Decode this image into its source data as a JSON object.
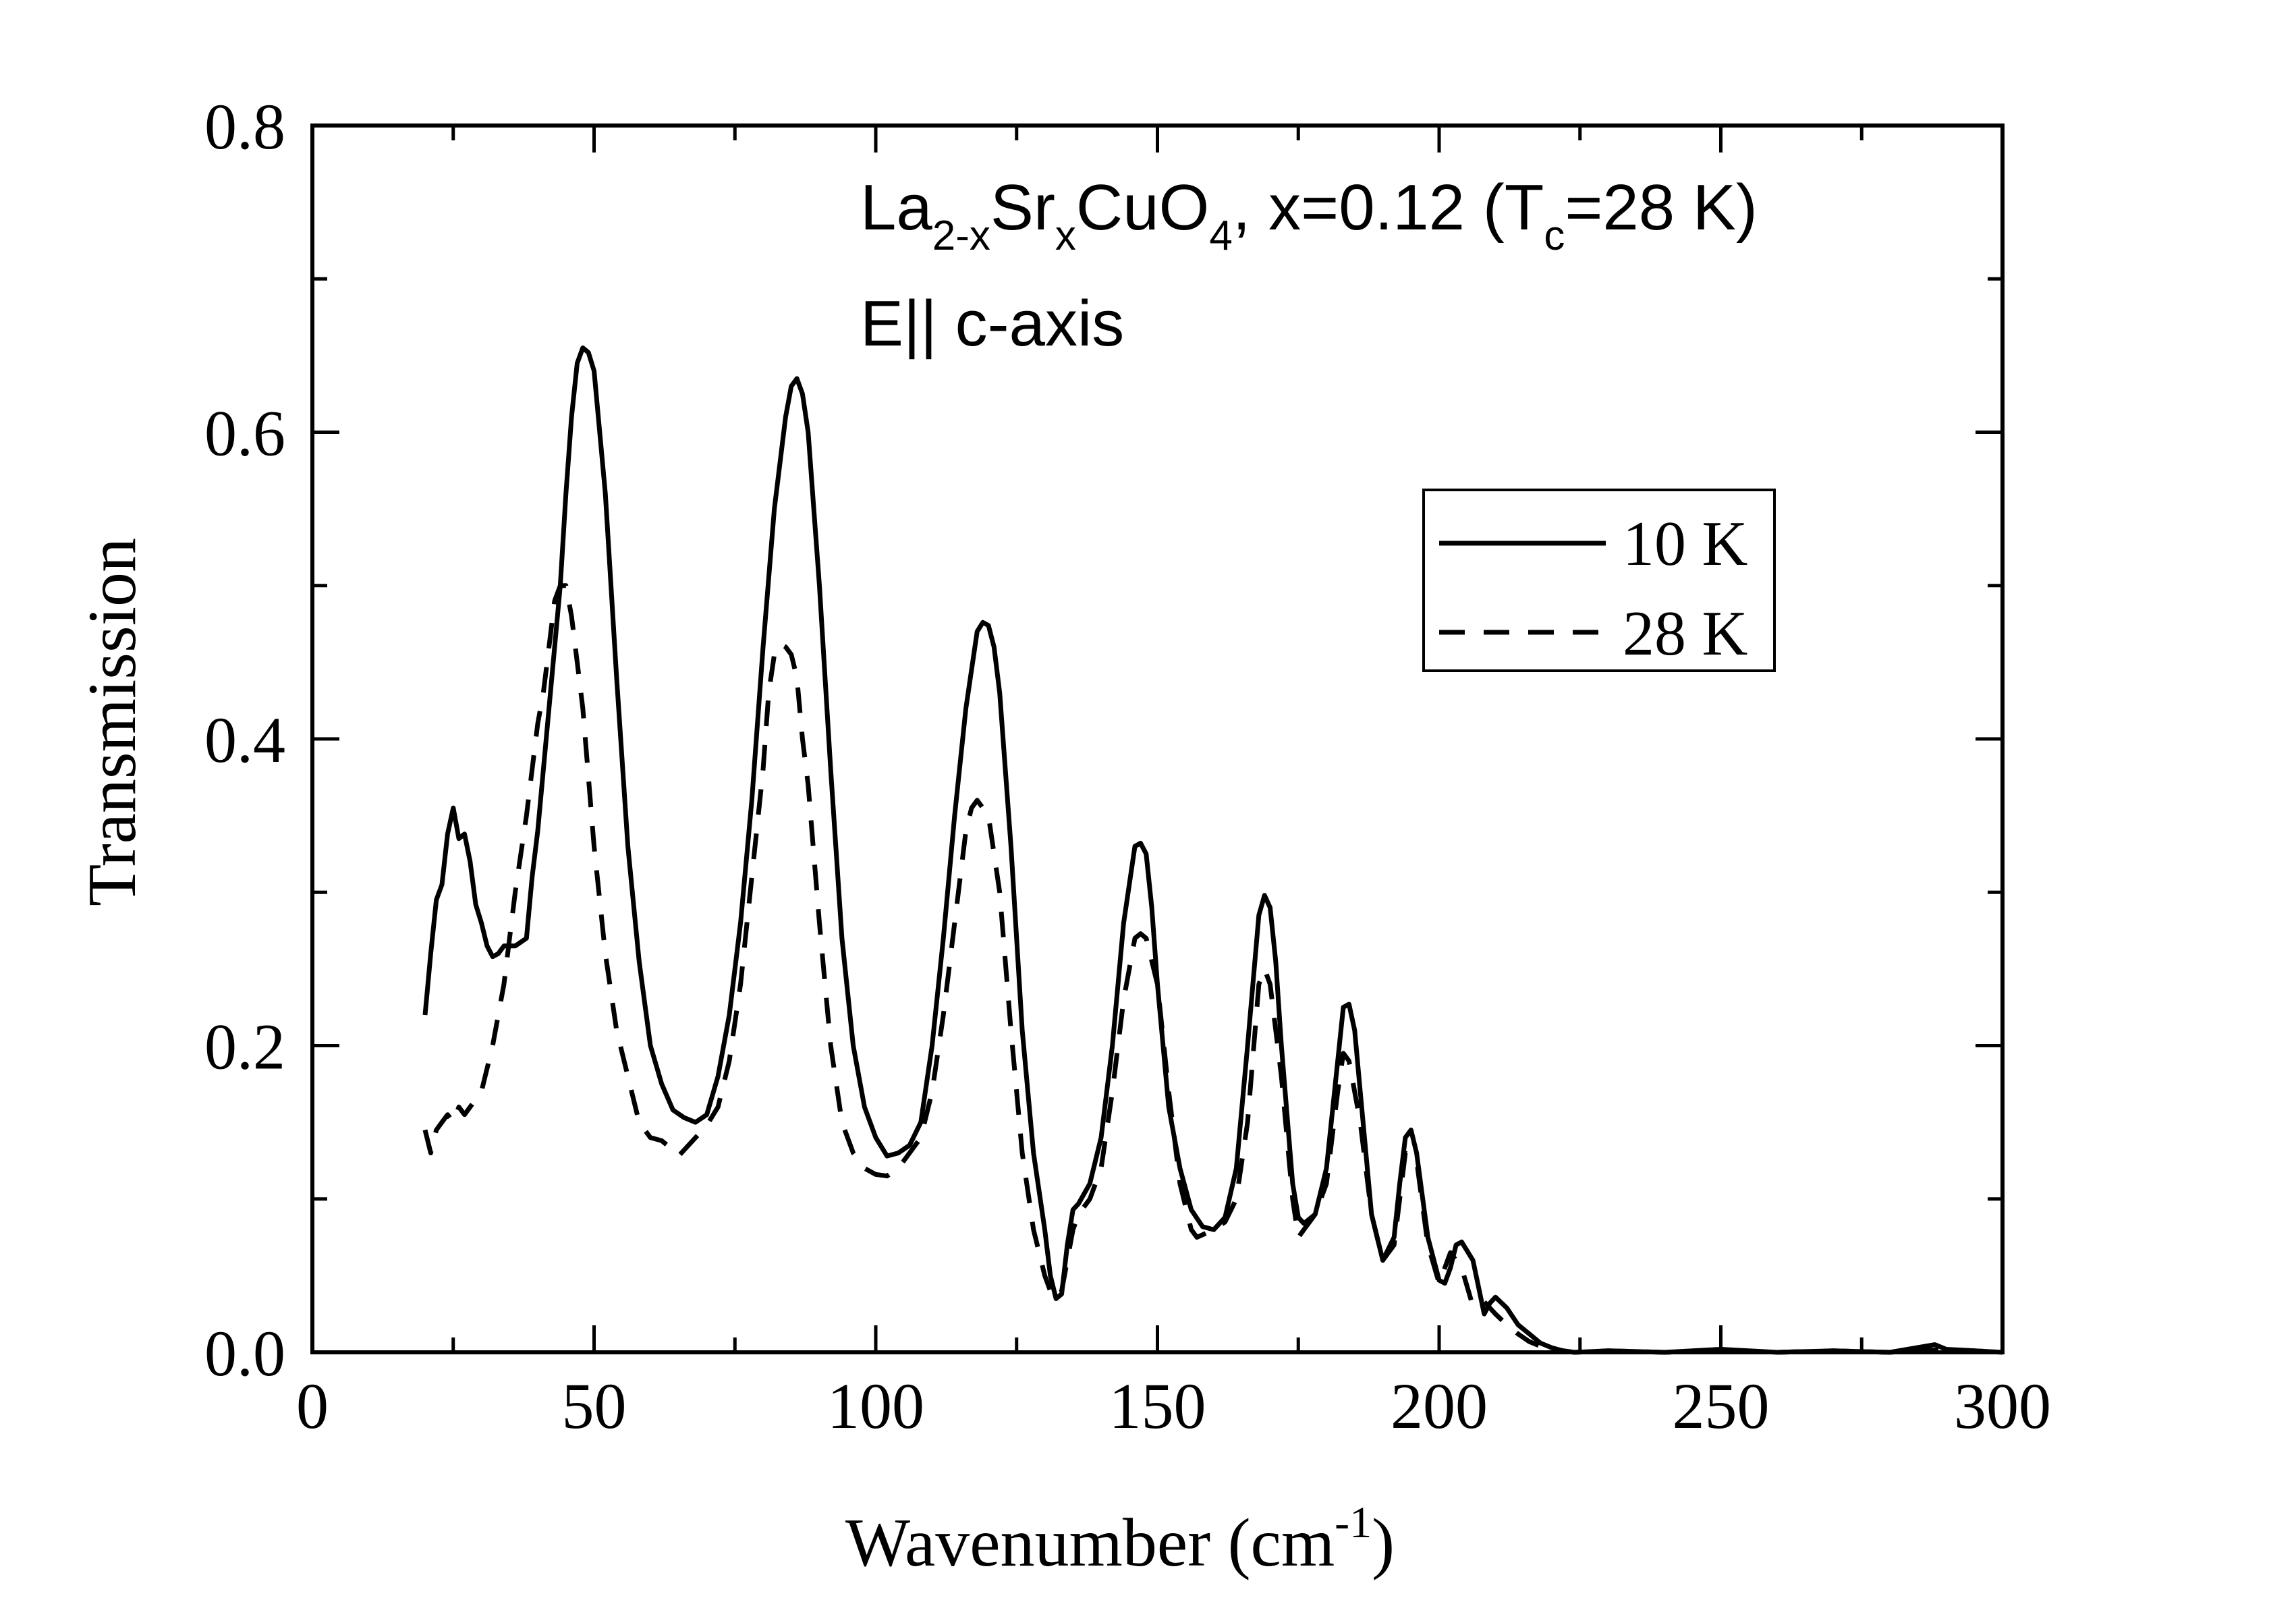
{
  "chart_data": {
    "type": "line",
    "title_line1": {
      "parts": [
        {
          "text": "La",
          "style": "normal"
        },
        {
          "text": "2-x",
          "style": "sub"
        },
        {
          "text": "Sr",
          "style": "normal"
        },
        {
          "text": "x",
          "style": "sub"
        },
        {
          "text": "CuO",
          "style": "normal"
        },
        {
          "text": "4",
          "style": "sub"
        },
        {
          "text": ", x=0.12 (T",
          "style": "normal"
        },
        {
          "text": "c",
          "style": "sub"
        },
        {
          "text": "=28 K)",
          "style": "normal"
        }
      ]
    },
    "title_line2": "E|| c-axis",
    "xlabel_main": "Wavenumber (cm",
    "xlabel_sup": "-1",
    "xlabel_end": ")",
    "ylabel": "Transmission",
    "xlim": [
      0,
      300
    ],
    "ylim": [
      0,
      0.8
    ],
    "xticks": [
      0,
      50,
      100,
      150,
      200,
      250,
      300
    ],
    "xtick_labels": [
      "0",
      "50",
      "100",
      "150",
      "200",
      "250",
      "300"
    ],
    "yticks": [
      0.0,
      0.2,
      0.4,
      0.6,
      0.8
    ],
    "ytick_labels": [
      "0.0",
      "0.2",
      "0.4",
      "0.6",
      "0.8"
    ],
    "legend_position": "upper-right",
    "series": [
      {
        "name": "10 K",
        "style": "solid",
        "x": [
          20,
          21,
          22,
          23,
          24,
          25,
          26,
          27,
          28,
          29,
          30,
          31,
          32,
          33,
          34,
          36,
          38,
          39,
          40,
          42,
          44,
          45,
          46,
          47,
          48,
          49,
          50,
          52,
          54,
          56,
          58,
          60,
          62,
          64,
          66,
          68,
          70,
          72,
          74,
          76,
          78,
          80,
          82,
          84,
          85,
          86,
          87,
          88,
          90,
          92,
          94,
          96,
          98,
          100,
          102,
          104,
          106,
          108,
          110,
          112,
          114,
          116,
          118,
          119,
          120,
          121,
          122,
          124,
          126,
          128,
          130,
          131,
          132,
          133,
          134,
          135,
          136,
          138,
          140,
          142,
          144,
          146,
          147,
          148,
          149,
          150,
          152,
          154,
          156,
          158,
          160,
          162,
          164,
          166,
          168,
          169,
          170,
          171,
          172,
          174,
          175,
          176,
          178,
          180,
          182,
          183,
          184,
          185,
          186,
          188,
          190,
          192,
          193,
          194,
          195,
          196,
          198,
          200,
          201,
          202,
          203,
          204,
          206,
          208,
          209,
          210,
          212,
          214,
          216,
          218,
          220,
          222,
          224,
          230,
          240,
          250,
          260,
          270,
          280,
          288,
          290,
          295,
          300
        ],
        "values": [
          0.22,
          0.26,
          0.295,
          0.305,
          0.338,
          0.355,
          0.335,
          0.338,
          0.32,
          0.292,
          0.28,
          0.265,
          0.258,
          0.26,
          0.265,
          0.265,
          0.27,
          0.31,
          0.34,
          0.42,
          0.5,
          0.56,
          0.61,
          0.645,
          0.655,
          0.652,
          0.64,
          0.56,
          0.44,
          0.33,
          0.255,
          0.2,
          0.175,
          0.158,
          0.153,
          0.15,
          0.155,
          0.18,
          0.22,
          0.28,
          0.36,
          0.46,
          0.55,
          0.61,
          0.63,
          0.635,
          0.625,
          0.6,
          0.5,
          0.38,
          0.27,
          0.2,
          0.16,
          0.14,
          0.128,
          0.13,
          0.135,
          0.15,
          0.2,
          0.27,
          0.35,
          0.42,
          0.47,
          0.476,
          0.474,
          0.46,
          0.43,
          0.33,
          0.21,
          0.13,
          0.08,
          0.05,
          0.035,
          0.038,
          0.07,
          0.093,
          0.097,
          0.11,
          0.14,
          0.2,
          0.28,
          0.33,
          0.332,
          0.325,
          0.29,
          0.24,
          0.16,
          0.12,
          0.093,
          0.082,
          0.08,
          0.088,
          0.12,
          0.2,
          0.285,
          0.298,
          0.29,
          0.255,
          0.2,
          0.11,
          0.088,
          0.084,
          0.09,
          0.12,
          0.19,
          0.225,
          0.227,
          0.21,
          0.17,
          0.09,
          0.06,
          0.075,
          0.11,
          0.14,
          0.145,
          0.13,
          0.075,
          0.047,
          0.045,
          0.055,
          0.07,
          0.072,
          0.06,
          0.025,
          0.032,
          0.036,
          0.029,
          0.018,
          0.012,
          0.006,
          0.003,
          0.001,
          0.0,
          0.001,
          0.0,
          0.002,
          0.0,
          0.001,
          0.0,
          0.005,
          0.002,
          0.001,
          0.0
        ]
      },
      {
        "name": "28 K",
        "style": "dashed",
        "x": [
          20,
          21,
          22,
          23,
          24,
          25,
          26,
          27,
          28,
          30,
          32,
          34,
          36,
          38,
          40,
          41,
          42,
          43,
          44,
          45,
          46,
          47,
          48,
          50,
          52,
          54,
          56,
          58,
          60,
          62,
          64,
          65,
          70,
          72,
          74,
          76,
          78,
          80,
          81,
          82,
          83,
          84,
          85,
          86,
          87,
          88,
          90,
          92,
          94,
          96,
          98,
          100,
          102,
          104,
          106,
          108,
          110,
          112,
          114,
          116,
          117,
          118,
          119,
          120,
          122,
          124,
          126,
          128,
          130,
          131,
          132,
          133,
          134,
          135,
          136,
          138,
          140,
          142,
          144,
          146,
          147,
          148,
          150,
          152,
          154,
          156,
          157,
          160,
          162,
          164,
          166,
          168,
          169,
          170,
          172,
          174,
          175,
          176,
          178,
          180,
          182,
          183,
          184,
          186,
          188,
          190,
          192,
          194,
          196,
          198,
          200,
          202,
          204,
          206,
          208,
          210,
          212,
          214,
          216,
          218,
          220,
          222,
          224,
          230,
          240,
          250,
          260,
          270,
          280,
          290,
          300
        ],
        "values": [
          0.145,
          0.13,
          0.145,
          0.15,
          0.155,
          0.15,
          0.16,
          0.155,
          0.16,
          0.17,
          0.2,
          0.24,
          0.3,
          0.35,
          0.41,
          0.43,
          0.46,
          0.49,
          0.5,
          0.5,
          0.48,
          0.45,
          0.42,
          0.33,
          0.26,
          0.21,
          0.18,
          0.15,
          0.14,
          0.138,
          0.132,
          0.128,
          0.148,
          0.16,
          0.19,
          0.24,
          0.31,
          0.38,
          0.43,
          0.455,
          0.462,
          0.46,
          0.455,
          0.44,
          0.4,
          0.37,
          0.28,
          0.2,
          0.15,
          0.13,
          0.12,
          0.116,
          0.115,
          0.12,
          0.13,
          0.14,
          0.17,
          0.22,
          0.28,
          0.34,
          0.355,
          0.36,
          0.355,
          0.35,
          0.3,
          0.21,
          0.13,
          0.08,
          0.05,
          0.04,
          0.035,
          0.04,
          0.06,
          0.08,
          0.09,
          0.1,
          0.12,
          0.17,
          0.23,
          0.27,
          0.273,
          0.27,
          0.24,
          0.17,
          0.11,
          0.08,
          0.075,
          0.08,
          0.085,
          0.1,
          0.15,
          0.24,
          0.25,
          0.24,
          0.18,
          0.1,
          0.075,
          0.08,
          0.09,
          0.11,
          0.17,
          0.195,
          0.19,
          0.15,
          0.09,
          0.06,
          0.07,
          0.13,
          0.125,
          0.07,
          0.045,
          0.065,
          0.055,
          0.03,
          0.033,
          0.025,
          0.018,
          0.012,
          0.007,
          0.004,
          0.002,
          0.001,
          0.0,
          0.001,
          0.0,
          0.001,
          0.0,
          0.001,
          0.0,
          0.002,
          0.0
        ]
      }
    ]
  }
}
